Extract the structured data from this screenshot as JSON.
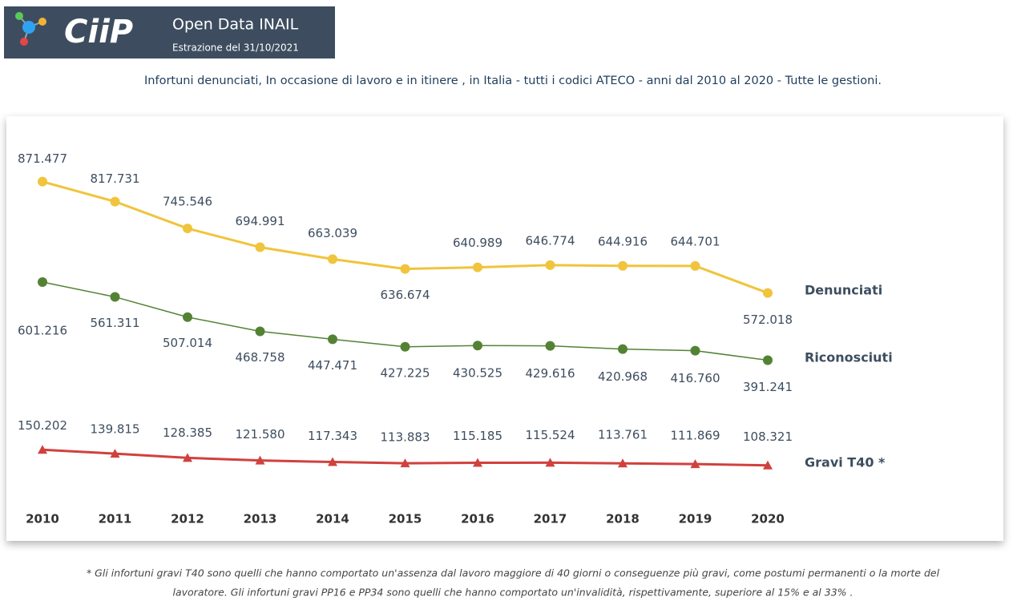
{
  "header": {
    "logo": "CiiP",
    "title": "Open Data INAIL",
    "subtitle": "Estrazione del 31/10/2021"
  },
  "chart_data": {
    "type": "line",
    "title": "Infortuni denunciati,  In occasione di lavoro e in itinere , in Italia - tutti i codici ATECO  - anni dal 2010 al 2020 - Tutte le gestioni.",
    "categories": [
      "2010",
      "2011",
      "2012",
      "2013",
      "2014",
      "2015",
      "2016",
      "2017",
      "2018",
      "2019",
      "2020"
    ],
    "ylim": [
      0,
      1000000
    ],
    "series": [
      {
        "name": "Denunciati",
        "color": "#f0c43c",
        "marker": "circle",
        "values": [
          871477,
          817731,
          745546,
          694991,
          663039,
          636674,
          640989,
          646774,
          644916,
          644701,
          572018
        ],
        "value_labels": [
          "871.477",
          "817.731",
          "745.546",
          "694.991",
          "663.039",
          "636.674",
          "640.989",
          "646.774",
          "644.916",
          "644.701",
          "572.018"
        ]
      },
      {
        "name": "Riconosciuti",
        "color": "#548235",
        "marker": "circle",
        "values": [
          601216,
          561311,
          507014,
          468758,
          447471,
          427225,
          430525,
          429616,
          420968,
          416760,
          391241
        ],
        "value_labels": [
          "601.216",
          "561.311",
          "507.014",
          "468.758",
          "447.471",
          "427.225",
          "430.525",
          "429.616",
          "420.968",
          "416.760",
          "391.241"
        ]
      },
      {
        "name": "Gravi T40 *",
        "color": "#d0413e",
        "marker": "triangle",
        "values": [
          150202,
          139815,
          128385,
          121580,
          117343,
          113883,
          115185,
          115524,
          113761,
          111869,
          108321
        ],
        "value_labels": [
          "150.202",
          "139.815",
          "128.385",
          "121.580",
          "117.343",
          "113.883",
          "115.185",
          "115.524",
          "113.761",
          "111.869",
          "108.321"
        ]
      }
    ]
  },
  "footnote": [
    "* Gli infortuni gravi T40 sono quelli che hanno comportato un'assenza dal lavoro maggiore di 40 giorni o conseguenze più gravi, come postumi permanenti o la morte del",
    "lavoratore. Gli infortuni gravi PP16 e PP34 sono quelli che hanno comportato un'invalidità, rispettivamente, superiore al 15% e al 33% ."
  ]
}
